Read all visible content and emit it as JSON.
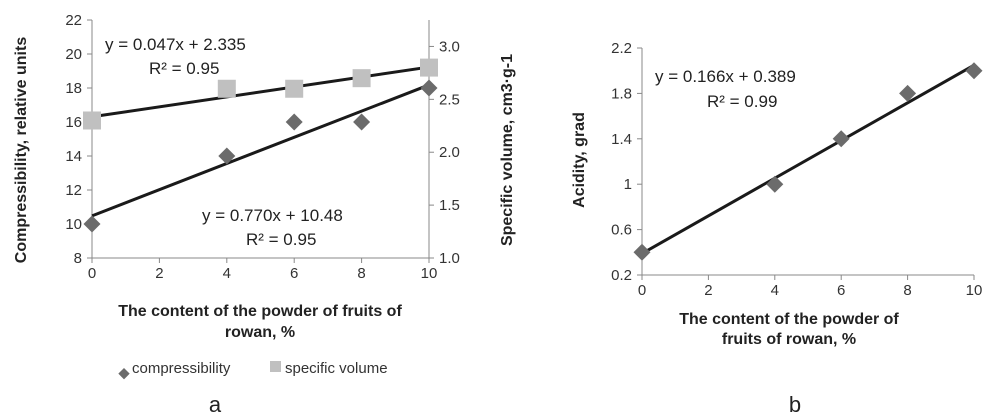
{
  "chart_data": [
    {
      "type": "scatter",
      "panel_label": "a",
      "xlabel_lines": [
        "The content of the powder of fruits of",
        "rowan, %"
      ],
      "ylabel": "Compressibility, relative units",
      "y2label": "Specific volume, cm3·g-1",
      "x_ticks": [
        "0",
        "2",
        "4",
        "6",
        "8",
        "10"
      ],
      "y_ticks": [
        "8",
        "10",
        "12",
        "14",
        "16",
        "18",
        "20",
        "22"
      ],
      "y2_ticks": [
        "1.0",
        "1.5",
        "2.0",
        "2.5",
        "3.0"
      ],
      "xlim": [
        0,
        10
      ],
      "ylim": [
        8,
        22
      ],
      "y2lim": [
        1.0,
        3.25
      ],
      "grid": false,
      "legend_position": "bottom",
      "series": [
        {
          "name": "compressibility",
          "marker": "diamond",
          "color": "#6b6b6b",
          "axis": "left",
          "x": [
            0,
            4,
            6,
            8,
            10
          ],
          "y": [
            10,
            14,
            16,
            16,
            18
          ],
          "trendline": {
            "slope": 0.77,
            "intercept": 10.48,
            "color": "#1a1a1a"
          }
        },
        {
          "name": "specific volume",
          "marker": "square",
          "color": "#c0c0c0",
          "axis": "right",
          "x": [
            0,
            4,
            6,
            8,
            10
          ],
          "y": [
            2.3,
            2.6,
            2.6,
            2.7,
            2.8
          ],
          "trendline": {
            "slope": 0.047,
            "intercept": 2.335,
            "color": "#1a1a1a"
          }
        }
      ],
      "annotations": [
        {
          "line1": "y = 0.047x + 2.335",
          "line2": "R² = 0.95"
        },
        {
          "line1": "y = 0.770x + 10.48",
          "line2": "R² = 0.95"
        }
      ]
    },
    {
      "type": "scatter",
      "panel_label": "b",
      "xlabel_lines": [
        "The content of the powder of",
        "fruits of rowan, %"
      ],
      "ylabel": "Acidity, grad",
      "x_ticks": [
        "0",
        "2",
        "4",
        "6",
        "8",
        "10"
      ],
      "y_ticks": [
        "0.2",
        "0.6",
        "1",
        "1.4",
        "1.8",
        "2.2"
      ],
      "xlim": [
        0,
        10
      ],
      "ylim": [
        0.2,
        2.2
      ],
      "grid": false,
      "series": [
        {
          "marker": "diamond",
          "color": "#6b6b6b",
          "axis": "left",
          "x": [
            0,
            4,
            6,
            8,
            10
          ],
          "y": [
            0.4,
            1.0,
            1.4,
            1.8,
            2.0
          ],
          "trendline": {
            "slope": 0.166,
            "intercept": 0.389,
            "color": "#1a1a1a"
          }
        }
      ],
      "annotations": [
        {
          "line1": "y = 0.166x + 0.389",
          "line2": "R² = 0.99"
        }
      ]
    }
  ]
}
